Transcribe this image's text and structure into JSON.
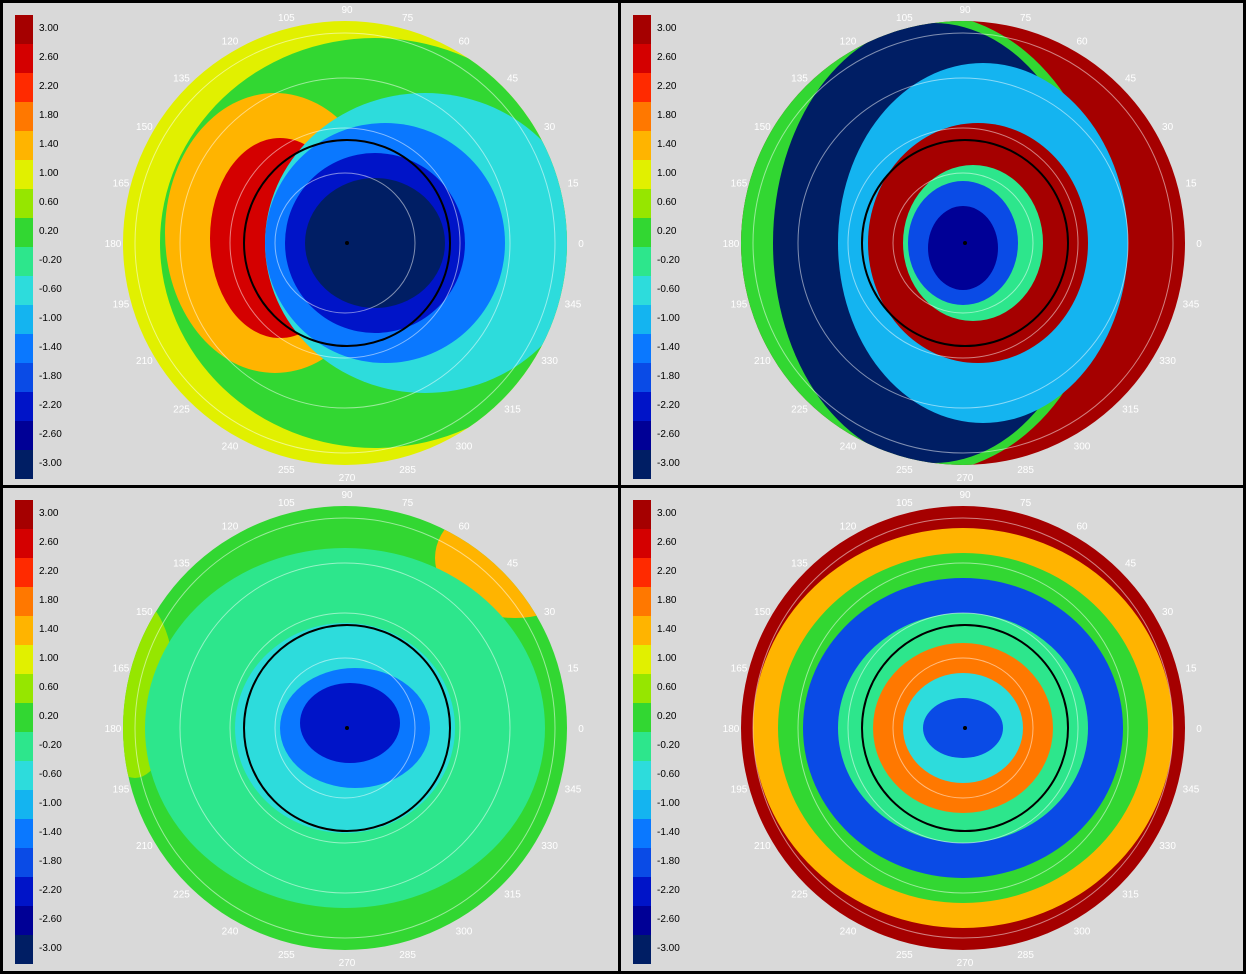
{
  "scale": {
    "labels": [
      "3.00",
      "2.60",
      "2.20",
      "1.80",
      "1.40",
      "1.00",
      "0.60",
      "0.20",
      "-0.20",
      "-0.60",
      "-1.00",
      "-1.40",
      "-1.80",
      "-2.20",
      "-2.60",
      "-3.00"
    ],
    "colors": [
      "#a50000",
      "#d40000",
      "#ff2a00",
      "#ff7800",
      "#ffb400",
      "#e1f000",
      "#96e600",
      "#32d732",
      "#2de68c",
      "#2ddcdc",
      "#14b4f0",
      "#0a78ff",
      "#0a4be6",
      "#0014c8",
      "#000096",
      "#001e64"
    ]
  },
  "angle_labels": [
    "0",
    "15",
    "30",
    "45",
    "60",
    "75",
    "90",
    "105",
    "120",
    "135",
    "150",
    "165",
    "180",
    "195",
    "210",
    "225",
    "240",
    "255",
    "270",
    "285",
    "300",
    "315",
    "330",
    "345"
  ],
  "chart_data": [
    {
      "type": "heatmap",
      "panel": "top-left",
      "legend": [
        "3.00",
        "2.60",
        "2.20",
        "1.80",
        "1.40",
        "1.00",
        "0.60",
        "0.20",
        "-0.20",
        "-0.60",
        "-1.00",
        "-1.40",
        "-1.80",
        "-2.20",
        "-2.60",
        "-3.00"
      ],
      "angular_ticks": [
        0,
        15,
        30,
        45,
        60,
        75,
        90,
        105,
        120,
        135,
        150,
        165,
        180,
        195,
        210,
        225,
        240,
        255,
        270,
        285,
        300,
        315,
        330,
        345
      ]
    },
    {
      "type": "heatmap",
      "panel": "top-right",
      "legend": [
        "3.00",
        "2.60",
        "2.20",
        "1.80",
        "1.40",
        "1.00",
        "0.60",
        "0.20",
        "-0.20",
        "-0.60",
        "-1.00",
        "-1.40",
        "-1.80",
        "-2.20",
        "-2.60",
        "-3.00"
      ],
      "angular_ticks": [
        0,
        15,
        30,
        45,
        60,
        75,
        90,
        105,
        120,
        135,
        150,
        165,
        180,
        195,
        210,
        225,
        240,
        255,
        270,
        285,
        300,
        315,
        330,
        345
      ]
    },
    {
      "type": "heatmap",
      "panel": "bottom-left",
      "legend": [
        "3.00",
        "2.60",
        "2.20",
        "1.80",
        "1.40",
        "1.00",
        "0.60",
        "0.20",
        "-0.20",
        "-0.60",
        "-1.00",
        "-1.40",
        "-1.80",
        "-2.20",
        "-2.60",
        "-3.00"
      ],
      "angular_ticks": [
        0,
        15,
        30,
        45,
        60,
        75,
        90,
        105,
        120,
        135,
        150,
        165,
        180,
        195,
        210,
        225,
        240,
        255,
        270,
        285,
        300,
        315,
        330,
        345
      ]
    },
    {
      "type": "heatmap",
      "panel": "bottom-right",
      "legend": [
        "3.00",
        "2.60",
        "2.20",
        "1.80",
        "1.40",
        "1.00",
        "0.60",
        "0.20",
        "-0.20",
        "-0.60",
        "-1.00",
        "-1.40",
        "-1.80",
        "-2.20",
        "-2.60",
        "-3.00"
      ],
      "angular_ticks": [
        0,
        15,
        30,
        45,
        60,
        75,
        90,
        105,
        120,
        135,
        150,
        165,
        180,
        195,
        210,
        225,
        240,
        255,
        270,
        285,
        300,
        315,
        330,
        345
      ]
    }
  ]
}
